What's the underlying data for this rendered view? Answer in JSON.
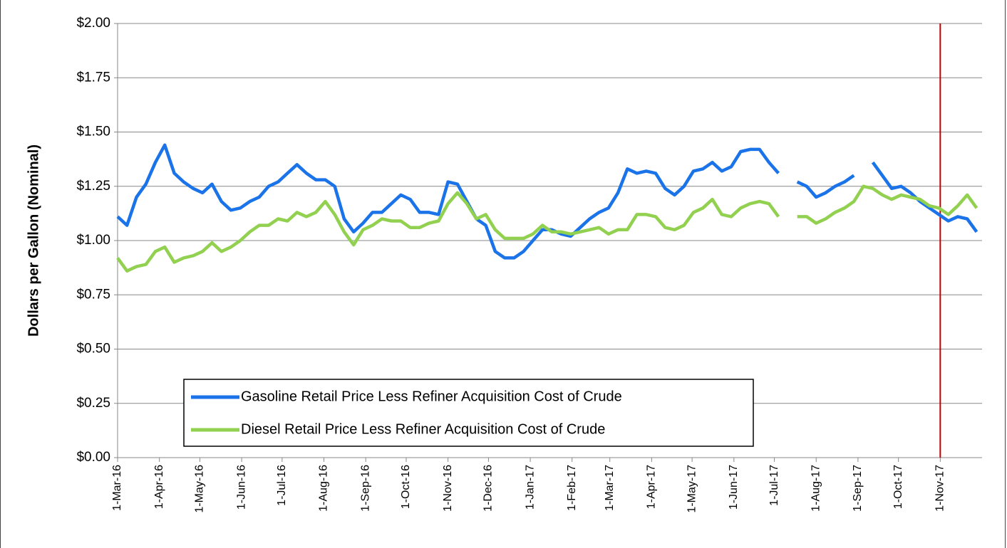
{
  "chart_data": {
    "type": "line",
    "ylabel": "Dollars per Gallon (Nominal)",
    "x": [
      "2016-03-01",
      "2016-03-08",
      "2016-03-15",
      "2016-03-22",
      "2016-03-29",
      "2016-04-05",
      "2016-04-12",
      "2016-04-19",
      "2016-04-26",
      "2016-05-03",
      "2016-05-10",
      "2016-05-17",
      "2016-05-24",
      "2016-05-31",
      "2016-06-07",
      "2016-06-14",
      "2016-06-21",
      "2016-06-28",
      "2016-07-05",
      "2016-07-12",
      "2016-07-19",
      "2016-07-26",
      "2016-08-02",
      "2016-08-09",
      "2016-08-16",
      "2016-08-23",
      "2016-08-30",
      "2016-09-06",
      "2016-09-13",
      "2016-09-20",
      "2016-09-27",
      "2016-10-04",
      "2016-10-11",
      "2016-10-18",
      "2016-10-25",
      "2016-11-01",
      "2016-11-08",
      "2016-11-15",
      "2016-11-22",
      "2016-11-29",
      "2016-12-06",
      "2016-12-13",
      "2016-12-20",
      "2016-12-27",
      "2017-01-03",
      "2017-01-10",
      "2017-01-17",
      "2017-01-24",
      "2017-01-31",
      "2017-02-07",
      "2017-02-14",
      "2017-02-21",
      "2017-02-28",
      "2017-03-07",
      "2017-03-14",
      "2017-03-21",
      "2017-03-28",
      "2017-04-04",
      "2017-04-11",
      "2017-04-18",
      "2017-04-25",
      "2017-05-02",
      "2017-05-09",
      "2017-05-16",
      "2017-05-23",
      "2017-05-30",
      "2017-06-06",
      "2017-06-13",
      "2017-06-20",
      "2017-06-27",
      "2017-07-04",
      "2017-07-11",
      "2017-07-18",
      "2017-07-25",
      "2017-08-01",
      "2017-08-08",
      "2017-08-15",
      "2017-08-22",
      "2017-08-29",
      "2017-09-05",
      "2017-09-12",
      "2017-09-19",
      "2017-09-26",
      "2017-10-03",
      "2017-10-10",
      "2017-10-17",
      "2017-10-24",
      "2017-10-31",
      "2017-11-07",
      "2017-11-14",
      "2017-11-21",
      "2017-11-28"
    ],
    "series": [
      {
        "name": "Gasoline Retail Price Less Refiner Acquisition Cost of Crude",
        "color": "#1a73e8",
        "values": [
          1.11,
          1.07,
          1.2,
          1.26,
          1.36,
          1.44,
          1.31,
          1.27,
          1.24,
          1.22,
          1.26,
          1.18,
          1.14,
          1.15,
          1.18,
          1.2,
          1.25,
          1.27,
          1.31,
          1.35,
          1.31,
          1.28,
          1.28,
          1.25,
          1.1,
          1.04,
          1.08,
          1.13,
          1.13,
          1.17,
          1.21,
          1.19,
          1.13,
          1.13,
          1.12,
          1.27,
          1.26,
          1.18,
          1.1,
          1.07,
          0.95,
          0.92,
          0.92,
          0.95,
          1.0,
          1.05,
          1.05,
          1.03,
          1.02,
          1.06,
          1.1,
          1.13,
          1.15,
          1.22,
          1.33,
          1.31,
          1.32,
          1.31,
          1.24,
          1.21,
          1.25,
          1.32,
          1.33,
          1.36,
          1.32,
          1.34,
          1.41,
          1.42,
          1.42,
          1.36,
          1.31,
          null,
          1.27,
          1.25,
          1.2,
          1.22,
          1.25,
          1.27,
          1.3,
          null,
          1.36,
          1.3,
          1.24,
          1.25,
          1.22,
          1.18,
          1.15,
          1.12,
          1.09,
          1.11,
          1.1,
          1.04
        ]
      },
      {
        "name": "Diesel Retail Price Less Refiner Acquisition Cost of Crude",
        "color": "#92d050",
        "values": [
          0.92,
          0.86,
          0.88,
          0.89,
          0.95,
          0.97,
          0.9,
          0.92,
          0.93,
          0.95,
          0.99,
          0.95,
          0.97,
          1.0,
          1.04,
          1.07,
          1.07,
          1.1,
          1.09,
          1.13,
          1.11,
          1.13,
          1.18,
          1.12,
          1.04,
          0.98,
          1.05,
          1.07,
          1.1,
          1.09,
          1.09,
          1.06,
          1.06,
          1.08,
          1.09,
          1.17,
          1.22,
          1.17,
          1.1,
          1.12,
          1.05,
          1.01,
          1.01,
          1.01,
          1.03,
          1.07,
          1.04,
          1.04,
          1.03,
          1.04,
          1.05,
          1.06,
          1.03,
          1.05,
          1.05,
          1.12,
          1.12,
          1.11,
          1.06,
          1.05,
          1.07,
          1.13,
          1.15,
          1.19,
          1.12,
          1.11,
          1.15,
          1.17,
          1.18,
          1.17,
          1.11,
          null,
          1.11,
          1.11,
          1.08,
          1.1,
          1.13,
          1.15,
          1.18,
          1.25,
          1.24,
          1.21,
          1.19,
          1.21,
          1.2,
          1.19,
          1.16,
          1.15,
          1.12,
          1.16,
          1.21,
          1.15
        ]
      }
    ],
    "xlim": [
      "2016-03-01",
      "2017-12-02"
    ],
    "xticks": [
      {
        "value": "2016-03-01",
        "label": "1-Mar-16"
      },
      {
        "value": "2016-04-01",
        "label": "1-Apr-16"
      },
      {
        "value": "2016-05-01",
        "label": "1-May-16"
      },
      {
        "value": "2016-06-01",
        "label": "1-Jun-16"
      },
      {
        "value": "2016-07-01",
        "label": "1-Jul-16"
      },
      {
        "value": "2016-08-01",
        "label": "1-Aug-16"
      },
      {
        "value": "2016-09-01",
        "label": "1-Sep-16"
      },
      {
        "value": "2016-10-01",
        "label": "1-Oct-16"
      },
      {
        "value": "2016-11-01",
        "label": "1-Nov-16"
      },
      {
        "value": "2016-12-01",
        "label": "1-Dec-16"
      },
      {
        "value": "2017-01-01",
        "label": "1-Jan-17"
      },
      {
        "value": "2017-02-01",
        "label": "1-Feb-17"
      },
      {
        "value": "2017-03-01",
        "label": "1-Mar-17"
      },
      {
        "value": "2017-04-01",
        "label": "1-Apr-17"
      },
      {
        "value": "2017-05-01",
        "label": "1-May-17"
      },
      {
        "value": "2017-06-01",
        "label": "1-Jun-17"
      },
      {
        "value": "2017-07-01",
        "label": "1-Jul-17"
      },
      {
        "value": "2017-08-01",
        "label": "1-Aug-17"
      },
      {
        "value": "2017-09-01",
        "label": "1-Sep-17"
      },
      {
        "value": "2017-10-01",
        "label": "1-Oct-17"
      },
      {
        "value": "2017-11-01",
        "label": "1-Nov-17"
      }
    ],
    "ylim": [
      0,
      2
    ],
    "yticks": [
      {
        "value": 0,
        "label": "$0.00"
      },
      {
        "value": 0.25,
        "label": "$0.25"
      },
      {
        "value": 0.5,
        "label": "$0.50"
      },
      {
        "value": 0.75,
        "label": "$0.75"
      },
      {
        "value": 1,
        "label": "$1.00"
      },
      {
        "value": 1.25,
        "label": "$1.25"
      },
      {
        "value": 1.5,
        "label": "$1.50"
      },
      {
        "value": 1.75,
        "label": "$1.75"
      },
      {
        "value": 2,
        "label": "$2.00"
      }
    ],
    "grid": true,
    "vline": {
      "value": "2017-11-01",
      "color": "#c00000"
    }
  }
}
